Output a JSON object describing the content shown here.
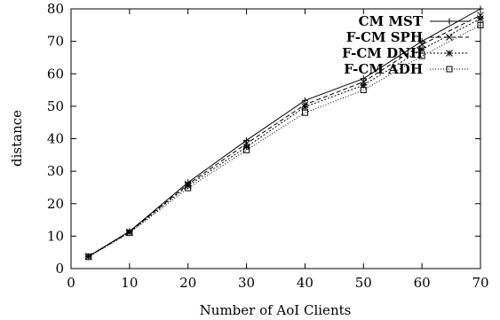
{
  "chart_data": {
    "type": "line",
    "xlabel": "Number of AoI Clients",
    "ylabel": "distance",
    "xlim": [
      0,
      70
    ],
    "ylim": [
      0,
      80
    ],
    "xticks": [
      0,
      10,
      20,
      30,
      40,
      50,
      60,
      70
    ],
    "yticks": [
      0,
      10,
      20,
      30,
      40,
      50,
      60,
      70,
      80
    ],
    "grid": false,
    "legend_position": "top-right",
    "x": [
      3,
      10,
      20,
      30,
      40,
      50,
      60,
      70
    ],
    "series": [
      {
        "name": "CM MST",
        "marker": "plus",
        "dash": "solid",
        "values": [
          3.8,
          11.5,
          26.5,
          39.5,
          51.8,
          58.5,
          70.0,
          80.0
        ]
      },
      {
        "name": "F-CM SPH",
        "marker": "cross",
        "dash": "dashed",
        "values": [
          3.8,
          11.3,
          26.0,
          38.5,
          50.5,
          57.5,
          69.0,
          78.0
        ]
      },
      {
        "name": "F-CM DNH",
        "marker": "star",
        "dash": "dotted",
        "values": [
          3.7,
          11.2,
          25.5,
          37.5,
          49.8,
          56.5,
          67.5,
          77.0
        ]
      },
      {
        "name": "F-CM ADH",
        "marker": "square",
        "dash": "fine-dotted",
        "values": [
          3.6,
          11.0,
          24.8,
          36.5,
          48.0,
          55.0,
          65.5,
          75.0
        ]
      }
    ]
  }
}
